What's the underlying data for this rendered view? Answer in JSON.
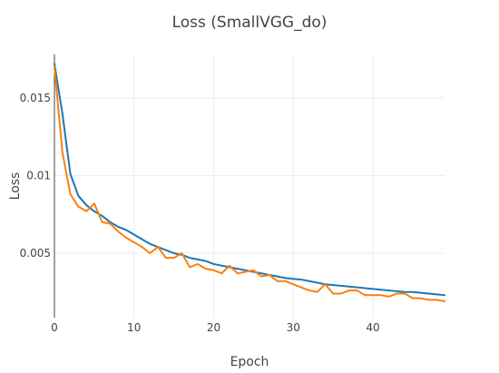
{
  "chart_data": {
    "type": "line",
    "title": "Loss (SmallVGG_do)",
    "xlabel": "Epoch",
    "ylabel": "Loss",
    "xlim": [
      0,
      49
    ],
    "ylim": [
      0.00085,
      0.0178
    ],
    "x_ticks": [
      0,
      10,
      20,
      30,
      40
    ],
    "x_tick_labels": [
      "0",
      "10",
      "20",
      "30",
      "40"
    ],
    "y_ticks": [
      0.005,
      0.01,
      0.015
    ],
    "y_tick_labels": [
      "0.005",
      "0.01",
      "0.015"
    ],
    "grid": true,
    "legend": "none",
    "x": [
      0,
      1,
      2,
      3,
      4,
      5,
      6,
      7,
      8,
      9,
      10,
      11,
      12,
      13,
      14,
      15,
      16,
      17,
      18,
      19,
      20,
      21,
      22,
      23,
      24,
      25,
      26,
      27,
      28,
      29,
      30,
      31,
      32,
      33,
      34,
      35,
      36,
      37,
      38,
      39,
      40,
      41,
      42,
      43,
      44,
      45,
      46,
      47,
      48,
      49
    ],
    "series": [
      {
        "color": "#1f77b4",
        "values": [
          0.0172,
          0.014,
          0.0101,
          0.0087,
          0.0081,
          0.0077,
          0.0074,
          0.007,
          0.0067,
          0.0065,
          0.0062,
          0.0059,
          0.0056,
          0.0054,
          0.0052,
          0.005,
          0.0049,
          0.0047,
          0.0046,
          0.0045,
          0.0043,
          0.0042,
          0.0041,
          0.004,
          0.0039,
          0.0038,
          0.0037,
          0.0036,
          0.0035,
          0.0034,
          0.00335,
          0.0033,
          0.0032,
          0.0031,
          0.003,
          0.00295,
          0.0029,
          0.00285,
          0.0028,
          0.00275,
          0.0027,
          0.00265,
          0.0026,
          0.00255,
          0.0025,
          0.0025,
          0.00245,
          0.0024,
          0.00235,
          0.0023
        ]
      },
      {
        "color": "#ff7f0e",
        "values": [
          0.017,
          0.0115,
          0.0088,
          0.008,
          0.0077,
          0.0082,
          0.007,
          0.0069,
          0.0064,
          0.006,
          0.0057,
          0.0054,
          0.005,
          0.0054,
          0.0047,
          0.0047,
          0.005,
          0.0041,
          0.0043,
          0.004,
          0.0039,
          0.0037,
          0.0042,
          0.0037,
          0.0038,
          0.0039,
          0.0035,
          0.0036,
          0.0032,
          0.0032,
          0.003,
          0.0028,
          0.0026,
          0.0025,
          0.003,
          0.0024,
          0.0024,
          0.0026,
          0.0026,
          0.0023,
          0.0023,
          0.0023,
          0.0022,
          0.0024,
          0.0024,
          0.0021,
          0.0021,
          0.002,
          0.002,
          0.0019
        ]
      }
    ]
  }
}
